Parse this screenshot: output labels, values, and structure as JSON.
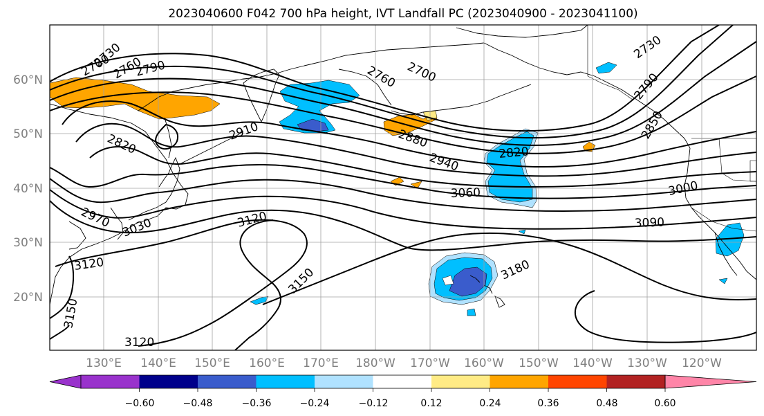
{
  "title": "2023040600 F042 700 hPa height, IVT Landfall PC (2023040900 - 2023041100)",
  "lat_labels": [
    "60°N",
    "50°N",
    "40°N",
    "30°N",
    "20°N"
  ],
  "lon_labels": [
    "130°E",
    "140°E",
    "150°E",
    "160°E",
    "170°E",
    "180°W",
    "170°W",
    "160°W",
    "150°W",
    "140°W",
    "130°W",
    "120°W"
  ],
  "contour_labels": [
    "2700",
    "2730",
    "2760",
    "2790",
    "2820",
    "2910",
    "2760",
    "2700",
    "2730",
    "2790",
    "2850",
    "2880",
    "2940",
    "2820",
    "3060",
    "3000",
    "3090",
    "2970",
    "3030",
    "3120",
    "3120",
    "3150",
    "3180",
    "3120",
    "3150"
  ],
  "colorbar": {
    "ticks": [
      "−0.60",
      "−0.48",
      "−0.36",
      "−0.24",
      "−0.12",
      "0.12",
      "0.24",
      "0.36",
      "0.48",
      "0.60"
    ],
    "colors": [
      "#9932cc",
      "#00008b",
      "#3a5ccc",
      "#00bfff",
      "#b0e2ff",
      "#ffffff",
      "#ffeb85",
      "#ffa500",
      "#ff4500",
      "#b22222",
      "#ff85a8"
    ]
  },
  "shading_colors": {
    "light_blue": "#b0e2ff",
    "blue": "#00bfff",
    "dark_blue": "#3a5ccc",
    "orange": "#ffa500",
    "yellow": "#ffeb85"
  }
}
